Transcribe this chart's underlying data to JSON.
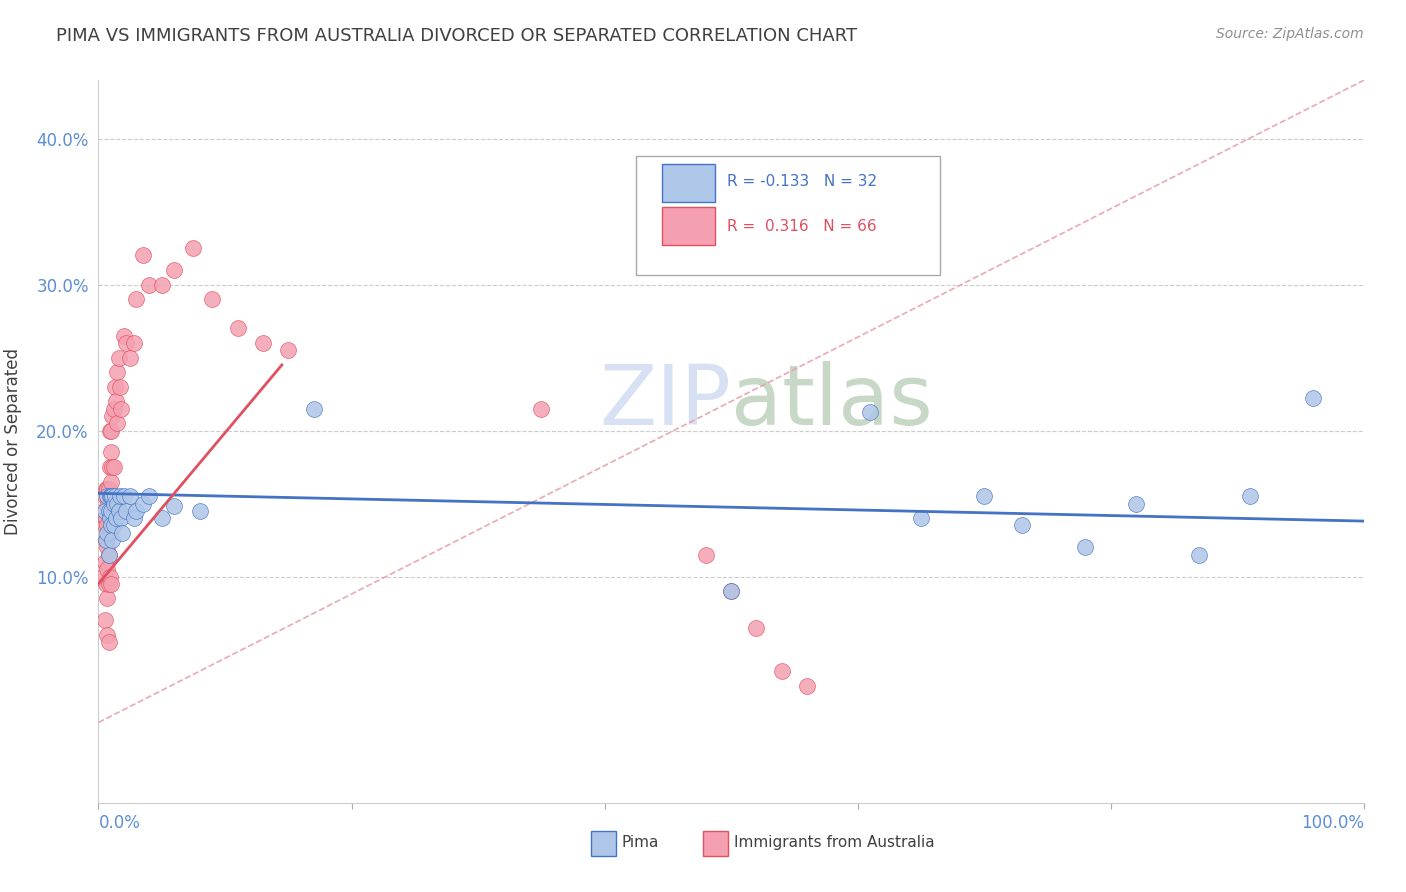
{
  "title": "PIMA VS IMMIGRANTS FROM AUSTRALIA DIVORCED OR SEPARATED CORRELATION CHART",
  "source": "Source: ZipAtlas.com",
  "ylabel": "Divorced or Separated",
  "xlim": [
    0.0,
    1.0
  ],
  "ylim": [
    -0.055,
    0.44
  ],
  "yticks": [
    0.1,
    0.2,
    0.3,
    0.4
  ],
  "ytick_labels": [
    "10.0%",
    "20.0%",
    "30.0%",
    "40.0%"
  ],
  "pima_R": -0.133,
  "pima_N": 32,
  "aus_R": 0.316,
  "aus_N": 66,
  "pima_color": "#aec6e8",
  "aus_color": "#f4a0b0",
  "pima_line_color": "#4472c4",
  "aus_line_color": "#e05060",
  "diagonal_color": "#e8a0a8",
  "background_color": "#ffffff",
  "grid_color": "#cccccc",
  "title_color": "#404040",
  "axis_label_color": "#5b8ed6",
  "pima_points_x": [
    0.005,
    0.006,
    0.007,
    0.007,
    0.008,
    0.008,
    0.009,
    0.009,
    0.01,
    0.01,
    0.01,
    0.011,
    0.011,
    0.012,
    0.012,
    0.013,
    0.014,
    0.015,
    0.016,
    0.017,
    0.018,
    0.019,
    0.02,
    0.022,
    0.025,
    0.028,
    0.03,
    0.035,
    0.04,
    0.05,
    0.06,
    0.08,
    0.17,
    0.5,
    0.61,
    0.65,
    0.7,
    0.73,
    0.78,
    0.82,
    0.87,
    0.91,
    0.96
  ],
  "pima_points_y": [
    0.145,
    0.125,
    0.155,
    0.13,
    0.145,
    0.115,
    0.155,
    0.14,
    0.155,
    0.145,
    0.135,
    0.155,
    0.125,
    0.15,
    0.135,
    0.155,
    0.14,
    0.15,
    0.145,
    0.155,
    0.14,
    0.13,
    0.155,
    0.145,
    0.155,
    0.14,
    0.145,
    0.15,
    0.155,
    0.14,
    0.148,
    0.145,
    0.215,
    0.09,
    0.213,
    0.14,
    0.155,
    0.135,
    0.12,
    0.15,
    0.115,
    0.155,
    0.222
  ],
  "aus_points_x": [
    0.004,
    0.005,
    0.005,
    0.005,
    0.005,
    0.006,
    0.006,
    0.006,
    0.006,
    0.007,
    0.007,
    0.007,
    0.007,
    0.007,
    0.007,
    0.007,
    0.008,
    0.008,
    0.008,
    0.008,
    0.008,
    0.008,
    0.009,
    0.009,
    0.009,
    0.009,
    0.009,
    0.01,
    0.01,
    0.01,
    0.01,
    0.011,
    0.011,
    0.012,
    0.012,
    0.013,
    0.014,
    0.015,
    0.015,
    0.016,
    0.017,
    0.018,
    0.02,
    0.022,
    0.025,
    0.028,
    0.03,
    0.035,
    0.04,
    0.05,
    0.06,
    0.075,
    0.09,
    0.11,
    0.13,
    0.15,
    0.35,
    0.48,
    0.5,
    0.52,
    0.54,
    0.56
  ],
  "aus_points_y": [
    0.1,
    0.155,
    0.135,
    0.11,
    0.07,
    0.16,
    0.14,
    0.125,
    0.095,
    0.16,
    0.148,
    0.135,
    0.12,
    0.105,
    0.085,
    0.06,
    0.16,
    0.145,
    0.13,
    0.115,
    0.095,
    0.055,
    0.2,
    0.175,
    0.155,
    0.13,
    0.1,
    0.2,
    0.185,
    0.165,
    0.095,
    0.21,
    0.175,
    0.215,
    0.175,
    0.23,
    0.22,
    0.24,
    0.205,
    0.25,
    0.23,
    0.215,
    0.265,
    0.26,
    0.25,
    0.26,
    0.29,
    0.32,
    0.3,
    0.3,
    0.31,
    0.325,
    0.29,
    0.27,
    0.26,
    0.255,
    0.215,
    0.115,
    0.09,
    0.065,
    0.035,
    0.025
  ],
  "pima_line_x": [
    0.0,
    1.0
  ],
  "pima_line_y": [
    0.157,
    0.138
  ],
  "aus_line_x": [
    0.0,
    0.145
  ],
  "aus_line_y": [
    0.095,
    0.245
  ],
  "diag_line_x": [
    0.0,
    1.0
  ],
  "diag_line_y": [
    0.0,
    0.44
  ]
}
